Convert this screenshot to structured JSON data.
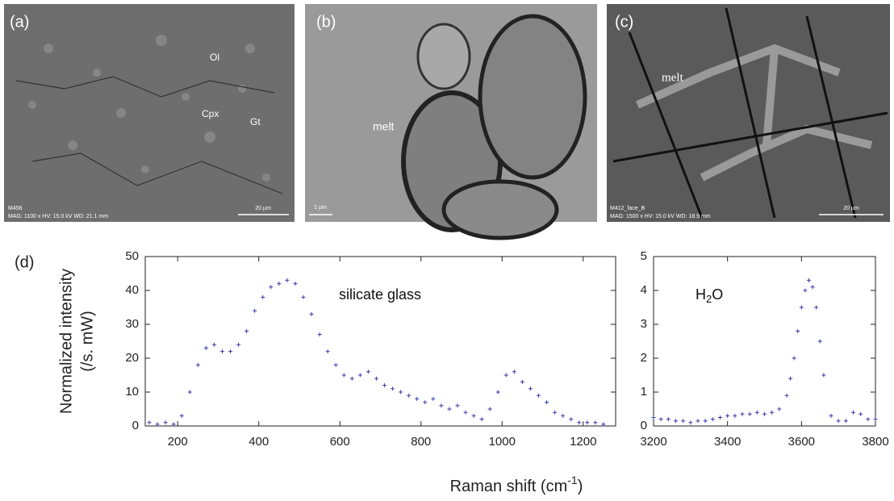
{
  "panels": [
    {
      "label": "(a)",
      "annotations": [
        "Ol",
        "Cpx",
        "Gt"
      ],
      "scale_bar": "20 µm",
      "sample": "M456",
      "info": "MAG: 1100 x  HV: 15.0 kV  WD: 21.1 mm"
    },
    {
      "label": "(b)",
      "annotations": [
        "melt"
      ],
      "scale_bar": "1 µm"
    },
    {
      "label": "(c)",
      "annotations": [
        "melt"
      ],
      "scale_bar": "20 µm",
      "sample": "M412_face_B",
      "info": "MAG: 1500 x  HV: 15.0 kV  WD: 18.9 mm"
    }
  ],
  "plot_label": "(d)",
  "y_label": [
    "Normalized intensity",
    "(/s. mW)"
  ],
  "x_label": [
    "Raman shift (cm",
    "-1",
    ")"
  ],
  "chart_data": [
    {
      "type": "scatter",
      "annotation": [
        "silicate glass"
      ],
      "color": "#3b3ba8",
      "x": [
        130,
        150,
        170,
        190,
        210,
        230,
        250,
        270,
        290,
        310,
        330,
        350,
        370,
        390,
        410,
        430,
        450,
        470,
        490,
        510,
        530,
        550,
        570,
        590,
        610,
        630,
        650,
        670,
        690,
        710,
        730,
        750,
        770,
        790,
        810,
        830,
        850,
        870,
        890,
        910,
        930,
        950,
        970,
        990,
        1010,
        1030,
        1050,
        1070,
        1090,
        1110,
        1130,
        1150,
        1170,
        1190,
        1210,
        1230,
        1250
      ],
      "values": [
        1,
        0.5,
        1,
        0.5,
        3,
        10,
        18,
        23,
        24,
        22,
        22,
        24,
        28,
        34,
        38,
        41,
        42,
        43,
        42,
        38,
        33,
        27,
        22,
        18,
        15,
        14,
        15,
        16,
        14,
        12,
        11,
        10,
        9,
        8,
        7,
        8,
        6,
        5,
        6,
        4,
        3,
        2,
        5,
        10,
        15,
        16,
        13,
        11,
        9,
        7,
        4,
        3,
        2,
        1,
        1,
        1,
        0.5
      ],
      "xlim": [
        120,
        1280
      ],
      "ylim": [
        0,
        50
      ],
      "xticks": [
        200,
        400,
        600,
        800,
        1000,
        1200
      ],
      "yticks": [
        0,
        10,
        20,
        30,
        40,
        50
      ]
    },
    {
      "type": "scatter",
      "annotation": [
        "H",
        "2",
        "O"
      ],
      "color": "#3b3ba8",
      "x": [
        3200,
        3220,
        3240,
        3260,
        3280,
        3300,
        3320,
        3340,
        3360,
        3380,
        3400,
        3420,
        3440,
        3460,
        3480,
        3500,
        3520,
        3540,
        3560,
        3570,
        3580,
        3590,
        3600,
        3610,
        3620,
        3630,
        3640,
        3650,
        3660,
        3680,
        3700,
        3720,
        3740,
        3760,
        3780,
        3800
      ],
      "values": [
        0.25,
        0.2,
        0.2,
        0.15,
        0.15,
        0.1,
        0.15,
        0.15,
        0.2,
        0.25,
        0.3,
        0.3,
        0.35,
        0.35,
        0.4,
        0.35,
        0.4,
        0.5,
        0.9,
        1.4,
        2.0,
        2.8,
        3.5,
        4.0,
        4.3,
        4.1,
        3.5,
        2.5,
        1.5,
        0.3,
        0.15,
        0.15,
        0.4,
        0.35,
        0.2,
        0.2
      ],
      "xlim": [
        3200,
        3800
      ],
      "ylim": [
        0,
        5
      ],
      "xticks": [
        3200,
        3400,
        3600,
        3800
      ],
      "yticks": [
        0,
        1,
        2,
        3,
        4,
        5
      ]
    }
  ]
}
